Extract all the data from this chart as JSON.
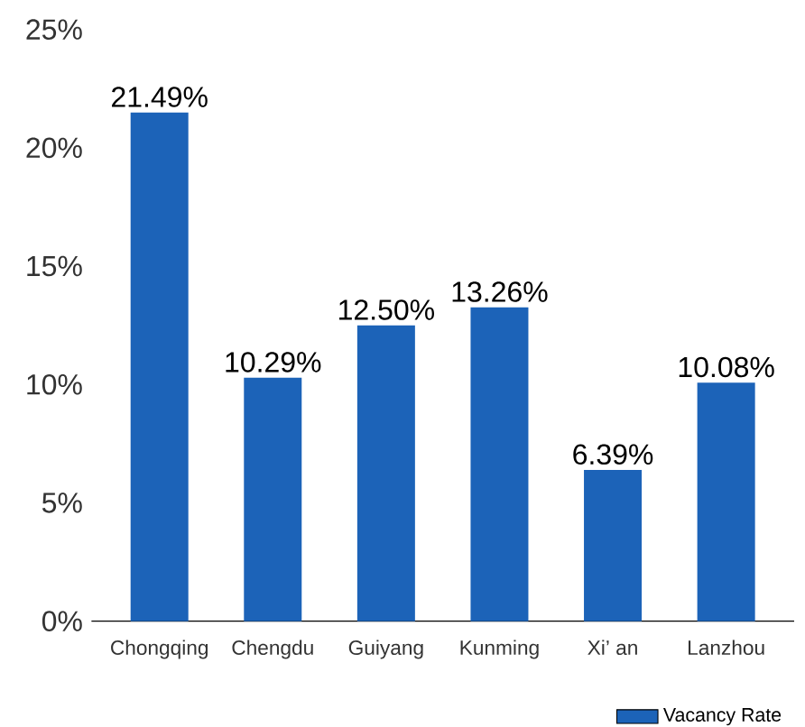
{
  "chart_data": {
    "type": "bar",
    "categories": [
      "Chongqing",
      "Chengdu",
      "Guiyang",
      "Kunming",
      "Xi’ an",
      "Lanzhou"
    ],
    "series": [
      {
        "name": "Vacancy Rate",
        "color": "#1c63b8",
        "values": [
          21.49,
          10.29,
          12.5,
          13.26,
          6.39,
          10.08
        ],
        "value_labels": [
          "21.49%",
          "10.29%",
          "12.50%",
          "13.26%",
          "6.39%",
          "10.08%"
        ]
      }
    ],
    "ylim": [
      0,
      25
    ],
    "yticks": [
      {
        "value": 0,
        "label": "0%"
      },
      {
        "value": 5,
        "label": "5%"
      },
      {
        "value": 10,
        "label": "10%"
      },
      {
        "value": 15,
        "label": "15%"
      },
      {
        "value": 20,
        "label": "20%"
      },
      {
        "value": 25,
        "label": "25%"
      }
    ],
    "legend": "bottom right"
  }
}
